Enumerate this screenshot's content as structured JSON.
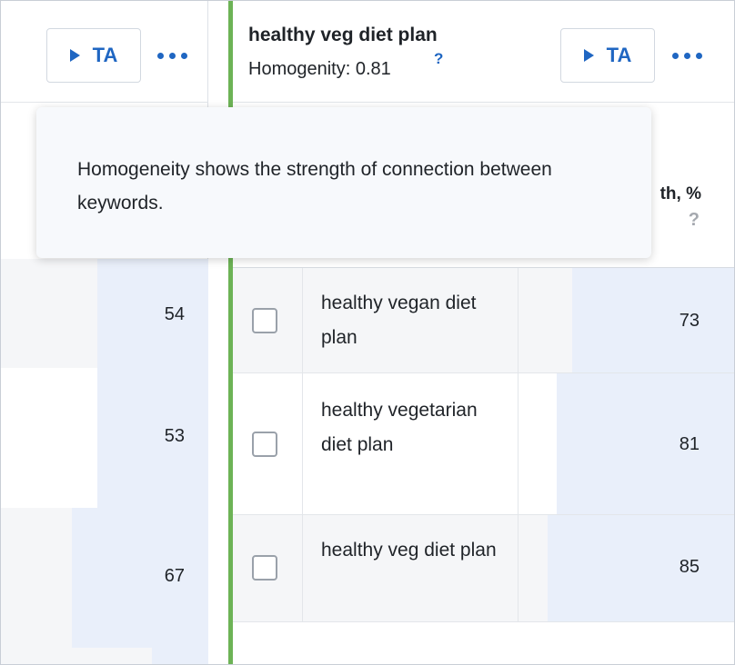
{
  "left_cluster": {
    "ta_label": "TA",
    "rows": [
      {
        "value": "54"
      },
      {
        "value": "53"
      },
      {
        "value": "67"
      }
    ]
  },
  "right_cluster": {
    "title": "healthy veg diet plan",
    "homogeneity_label": "Homogenity: 0.81",
    "homogeneity_help": "?",
    "ta_label": "TA",
    "strength_header": "th, %",
    "strength_help": "?",
    "rows": [
      {
        "keyword": "healthy vegan diet plan",
        "value": "73"
      },
      {
        "keyword": "healthy vegetarian diet plan",
        "value": "81"
      },
      {
        "keyword": "healthy veg diet plan",
        "value": "85"
      }
    ]
  },
  "tooltip": {
    "text": "Homogeneity shows the strength of connection between keywords."
  },
  "colors": {
    "accent": "#1f66c2",
    "cluster_border": "#6db356",
    "strength_bar": "#e9effa"
  }
}
